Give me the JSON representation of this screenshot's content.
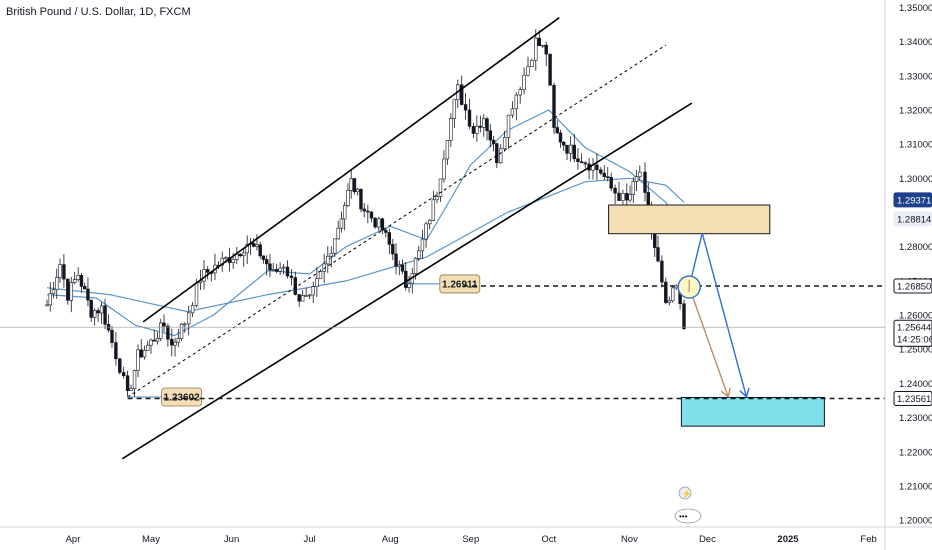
{
  "header": {
    "symbol_title": "British Pound / U.S. Dollar, 1D, FXCM"
  },
  "colors": {
    "up_candle": "#26a69a",
    "down_candle": "#26a69a",
    "ma_line": "#4a89c2",
    "channel": "#000000",
    "supply_zone": "#f5deb3",
    "target_zone": "#7fe0ea",
    "arrow_blue": "#2f6fd1",
    "arrow_brown": "#c08a6a",
    "circle_fill": "#fdf7c3",
    "price_tag_blue": "#1e3f8a",
    "price_tag_light": "#e8edf6"
  },
  "chart_data": {
    "type": "candlestick",
    "title": "British Pound / U.S. Dollar, 1D, FXCM",
    "x_axis": {
      "tick_labels": [
        "Apr",
        "May",
        "Jun",
        "Jul",
        "Aug",
        "Sep",
        "Oct",
        "Nov",
        "Dec",
        "2025",
        "Feb"
      ]
    },
    "y_axis": {
      "range": [
        1.198,
        1.351
      ],
      "tick_labels": [
        "1.35000",
        "1.34000",
        "1.33000",
        "1.32000",
        "1.31000",
        "1.30000",
        "1.28000",
        "1.27000",
        "1.26000",
        "1.25000",
        "1.24000",
        "1.23000",
        "1.22000",
        "1.21000",
        "1.20000"
      ]
    },
    "grid": false,
    "price_path": [
      {
        "d": "2024-03-22",
        "p": 1.263
      },
      {
        "d": "2024-03-27",
        "p": 1.275
      },
      {
        "d": "2024-03-30",
        "p": 1.266
      },
      {
        "d": "2024-04-03",
        "p": 1.272
      },
      {
        "d": "2024-04-08",
        "p": 1.261
      },
      {
        "d": "2024-04-12",
        "p": 1.262
      },
      {
        "d": "2024-04-16",
        "p": 1.252
      },
      {
        "d": "2024-04-19",
        "p": 1.245
      },
      {
        "d": "2024-04-22",
        "p": 1.236
      },
      {
        "d": "2024-04-26",
        "p": 1.248
      },
      {
        "d": "2024-05-01",
        "p": 1.252
      },
      {
        "d": "2024-05-06",
        "p": 1.257
      },
      {
        "d": "2024-05-09",
        "p": 1.251
      },
      {
        "d": "2024-05-14",
        "p": 1.258
      },
      {
        "d": "2024-05-20",
        "p": 1.271
      },
      {
        "d": "2024-05-27",
        "p": 1.275
      },
      {
        "d": "2024-06-03",
        "p": 1.278
      },
      {
        "d": "2024-06-07",
        "p": 1.281
      },
      {
        "d": "2024-06-12",
        "p": 1.278
      },
      {
        "d": "2024-06-17",
        "p": 1.272
      },
      {
        "d": "2024-06-21",
        "p": 1.275
      },
      {
        "d": "2024-06-27",
        "p": 1.265
      },
      {
        "d": "2024-07-01",
        "p": 1.264
      },
      {
        "d": "2024-07-08",
        "p": 1.277
      },
      {
        "d": "2024-07-12",
        "p": 1.286
      },
      {
        "d": "2024-07-17",
        "p": 1.299
      },
      {
        "d": "2024-07-22",
        "p": 1.291
      },
      {
        "d": "2024-07-29",
        "p": 1.285
      },
      {
        "d": "2024-08-02",
        "p": 1.278
      },
      {
        "d": "2024-08-07",
        "p": 1.269
      },
      {
        "d": "2024-08-12",
        "p": 1.278
      },
      {
        "d": "2024-08-19",
        "p": 1.296
      },
      {
        "d": "2024-08-23",
        "p": 1.313
      },
      {
        "d": "2024-08-27",
        "p": 1.326
      },
      {
        "d": "2024-09-02",
        "p": 1.314
      },
      {
        "d": "2024-09-06",
        "p": 1.318
      },
      {
        "d": "2024-09-11",
        "p": 1.306
      },
      {
        "d": "2024-09-17",
        "p": 1.322
      },
      {
        "d": "2024-09-23",
        "p": 1.333
      },
      {
        "d": "2024-09-26",
        "p": 1.34
      },
      {
        "d": "2024-09-30",
        "p": 1.337
      },
      {
        "d": "2024-10-03",
        "p": 1.314
      },
      {
        "d": "2024-10-08",
        "p": 1.309
      },
      {
        "d": "2024-10-15",
        "p": 1.305
      },
      {
        "d": "2024-10-21",
        "p": 1.302
      },
      {
        "d": "2024-10-25",
        "p": 1.297
      },
      {
        "d": "2024-10-31",
        "p": 1.293
      },
      {
        "d": "2024-11-05",
        "p": 1.302
      },
      {
        "d": "2024-11-07",
        "p": 1.294
      },
      {
        "d": "2024-11-12",
        "p": 1.275
      },
      {
        "d": "2024-11-15",
        "p": 1.262
      },
      {
        "d": "2024-11-19",
        "p": 1.268
      },
      {
        "d": "2024-11-22",
        "p": 1.256
      }
    ],
    "moving_averages": [
      {
        "points": [
          {
            "d": "2024-03-22",
            "p": 1.266
          },
          {
            "d": "2024-04-10",
            "p": 1.265
          },
          {
            "d": "2024-04-25",
            "p": 1.257
          },
          {
            "d": "2024-05-10",
            "p": 1.254
          },
          {
            "d": "2024-05-25",
            "p": 1.26
          },
          {
            "d": "2024-06-15",
            "p": 1.273
          },
          {
            "d": "2024-07-01",
            "p": 1.272
          },
          {
            "d": "2024-07-15",
            "p": 1.28
          },
          {
            "d": "2024-08-01",
            "p": 1.286
          },
          {
            "d": "2024-08-15",
            "p": 1.282
          },
          {
            "d": "2024-09-01",
            "p": 1.304
          },
          {
            "d": "2024-09-15",
            "p": 1.314
          },
          {
            "d": "2024-10-01",
            "p": 1.32
          },
          {
            "d": "2024-10-15",
            "p": 1.309
          },
          {
            "d": "2024-11-01",
            "p": 1.302
          },
          {
            "d": "2024-11-15",
            "p": 1.293
          },
          {
            "d": "2024-11-22",
            "p": 1.286
          }
        ]
      },
      {
        "points": [
          {
            "d": "2024-03-22",
            "p": 1.268
          },
          {
            "d": "2024-04-15",
            "p": 1.266
          },
          {
            "d": "2024-05-15",
            "p": 1.261
          },
          {
            "d": "2024-06-15",
            "p": 1.266
          },
          {
            "d": "2024-07-15",
            "p": 1.27
          },
          {
            "d": "2024-08-15",
            "p": 1.277
          },
          {
            "d": "2024-09-15",
            "p": 1.29
          },
          {
            "d": "2024-10-15",
            "p": 1.299
          },
          {
            "d": "2024-11-01",
            "p": 1.3
          },
          {
            "d": "2024-11-15",
            "p": 1.298
          },
          {
            "d": "2024-11-22",
            "p": 1.293
          }
        ]
      }
    ],
    "channel": {
      "upper": [
        {
          "d": "2024-04-28",
          "p": 1.258
        },
        {
          "d": "2024-10-05",
          "p": 1.347
        }
      ],
      "middle": [
        {
          "d": "2024-04-22",
          "p": 1.236
        },
        {
          "d": "2024-11-15",
          "p": 1.339
        }
      ],
      "lower": [
        {
          "d": "2024-04-20",
          "p": 1.218
        },
        {
          "d": "2024-11-25",
          "p": 1.322
        }
      ]
    },
    "levels": [
      {
        "value": 1.26911,
        "label": "1.26911",
        "from": "2024-08-07",
        "to": "2024-08-29",
        "style": "solid-thin"
      },
      {
        "value": 1.23602,
        "label": "1.23602",
        "from": "2024-04-22",
        "to": "2024-05-14",
        "style": "solid-thin"
      },
      {
        "value": 1.2685,
        "label": "1.26850",
        "from": "2024-08-29",
        "to": "2025-02-25",
        "style": "dashed"
      },
      {
        "value": 1.23561,
        "label": "1.23561",
        "from": "2024-04-22",
        "to": "2025-02-25",
        "style": "dashed"
      }
    ],
    "zones": [
      {
        "name": "supply",
        "from": "2024-10-24",
        "to": "2024-12-25",
        "top": 1.2922,
        "bottom": 1.2838
      },
      {
        "name": "target",
        "from": "2024-11-21",
        "to": "2025-01-15",
        "top": 1.2359,
        "bottom": 1.2275
      }
    ],
    "arrows": [
      {
        "color": "blue",
        "path": [
          {
            "d": "2024-11-24",
            "p": 1.2682
          },
          {
            "d": "2024-11-29",
            "p": 1.284
          },
          {
            "d": "2024-12-16",
            "p": 1.2361
          }
        ]
      },
      {
        "color": "brown",
        "path": [
          {
            "d": "2024-11-24",
            "p": 1.2682
          },
          {
            "d": "2024-12-09",
            "p": 1.2361
          }
        ]
      }
    ],
    "circle": {
      "d": "2024-11-24",
      "p": 1.2682
    },
    "price_tags": [
      {
        "value": 1.29371,
        "label": "1.29371",
        "style": "blue"
      },
      {
        "value": 1.28814,
        "label": "1.28814",
        "style": "light"
      },
      {
        "value": 1.2685,
        "label": "1.26850",
        "style": "light-border"
      },
      {
        "value": 1.25644,
        "label": "1.25644",
        "sub": "14:25:06",
        "style": "dark"
      },
      {
        "value": 1.23561,
        "label": "1.23561",
        "style": "light-border"
      }
    ]
  }
}
